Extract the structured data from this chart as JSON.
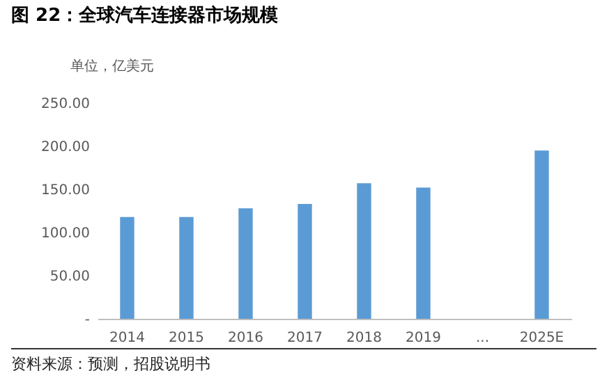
{
  "chart_data": {
    "type": "bar",
    "title": "图 22：全球汽车连接器市场规模",
    "ylabel": "单位，亿美元",
    "annotations": [
      "资料来源：预测，招股说明书"
    ],
    "categories": [
      "2014",
      "2015",
      "2016",
      "2017",
      "2018",
      "2019",
      "...",
      "2025E"
    ],
    "values": [
      118,
      118,
      128,
      133,
      157,
      152,
      null,
      195
    ],
    "color": "#5b9bd5",
    "ylim": [
      0,
      250
    ],
    "yticks": [
      {
        "value": 0,
        "label": "-"
      },
      {
        "value": 50,
        "label": "50.00"
      },
      {
        "value": 100,
        "label": "100.00"
      },
      {
        "value": 150,
        "label": "150.00"
      },
      {
        "value": 200,
        "label": "200.00"
      },
      {
        "value": 250,
        "label": "250.00"
      }
    ],
    "grid": false
  }
}
